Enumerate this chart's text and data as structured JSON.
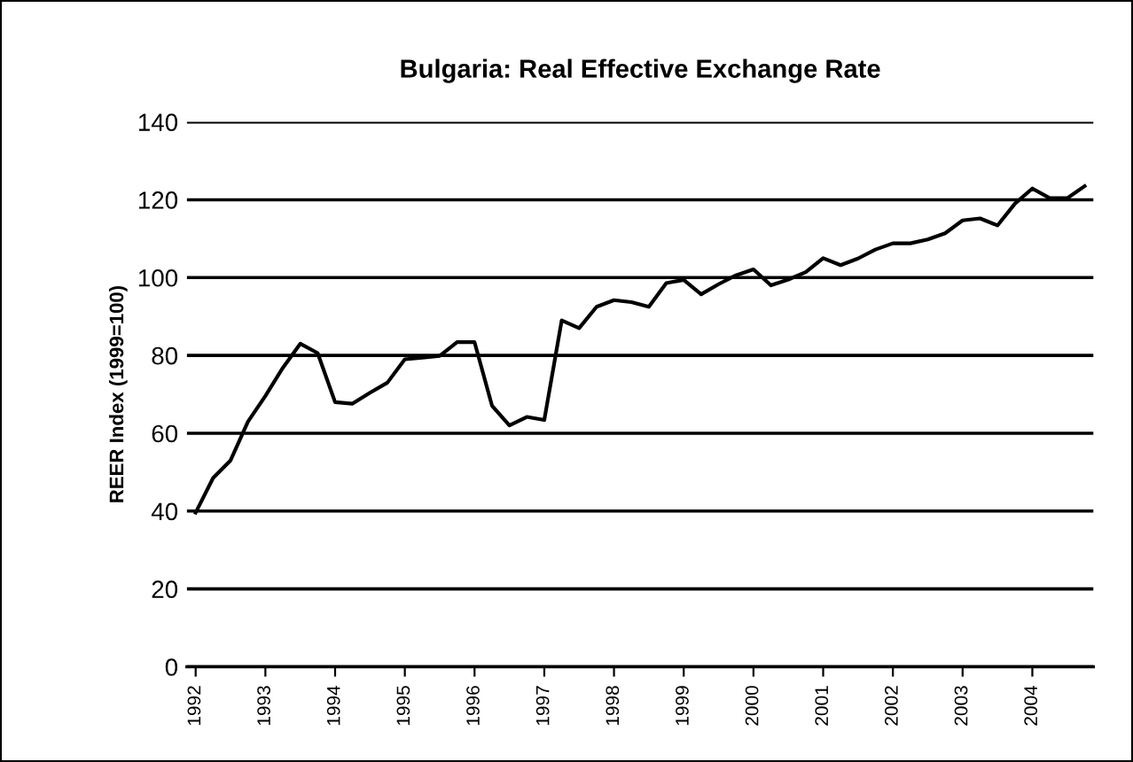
{
  "chart_data": {
    "type": "line",
    "title": "Bulgaria: Real Effective Exchange Rate",
    "ylabel": "REER Index (1999=100)",
    "categories": [
      "1992",
      null,
      null,
      null,
      "1993",
      null,
      null,
      null,
      "1994",
      null,
      null,
      null,
      "1995",
      null,
      null,
      null,
      "1996",
      null,
      null,
      null,
      "1997",
      null,
      null,
      null,
      "1998",
      null,
      null,
      null,
      "1999",
      null,
      null,
      null,
      "2000",
      null,
      null,
      null,
      "2001",
      null,
      null,
      null,
      "2002",
      null,
      null,
      null,
      "2003",
      null,
      null,
      null,
      "2004",
      null,
      null,
      null
    ],
    "series": [
      {
        "color": "#000000",
        "values": [
          39.6,
          48.5,
          53,
          63,
          69.6,
          76.8,
          83,
          80.6,
          68,
          67.6,
          70.4,
          73,
          79,
          79.4,
          79.9,
          83.4,
          83.4,
          67.1,
          62,
          64.2,
          63.4,
          89,
          87,
          92.5,
          94.2,
          93.7,
          92.5,
          98.6,
          99.4,
          95.7,
          98.3,
          100.6,
          102.1,
          98,
          99.5,
          101.4,
          105,
          103.2,
          104.9,
          107.2,
          108.8,
          108.8,
          109.8,
          111.4,
          114.7,
          115.2,
          113.4,
          119,
          122.9,
          120.4,
          120.4,
          123.5
        ]
      }
    ],
    "ylim": [
      0,
      140
    ],
    "yticks": [
      0,
      20,
      40,
      60,
      80,
      100,
      120,
      140
    ],
    "grid": "y",
    "legend": false,
    "marker": "none",
    "line_style": "solid"
  }
}
